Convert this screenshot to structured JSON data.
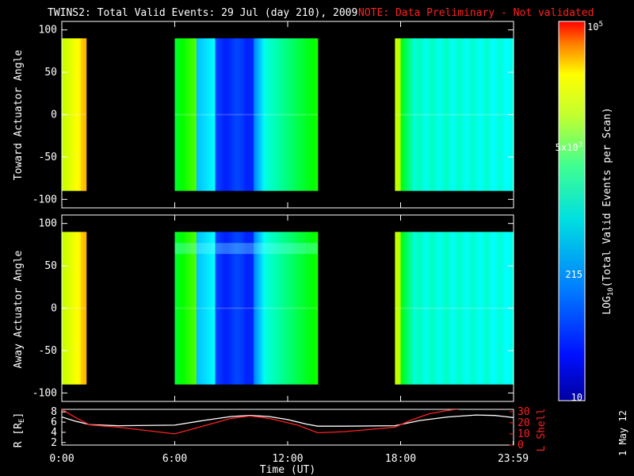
{
  "header": {
    "title": "TWINS2: Total Valid Events: 29 Jul (day 210), 2009",
    "note": "NOTE: Data Preliminary - Not validated",
    "stamp": "1 May 12"
  },
  "colors": {
    "note": "#ff2020",
    "lshell_line": "#ff2020",
    "r_line": "#ffffff",
    "background": "#000000"
  },
  "chart_data": [
    {
      "type": "heatmap",
      "panel": "toward",
      "ylabel": "Toward Actuator Angle",
      "xlim": [
        0,
        24
      ],
      "ylim": [
        -110,
        110
      ],
      "yticks": [
        "100",
        "50",
        "0",
        "-50",
        "-100"
      ],
      "angle_range": [
        -90,
        90
      ],
      "segments": [
        {
          "start": 0.0,
          "end": 1.3,
          "profile": "yellow"
        },
        {
          "start": 6.0,
          "end": 13.6,
          "profile": "midday"
        },
        {
          "start": 17.7,
          "end": 23.98,
          "profile": "evening"
        }
      ]
    },
    {
      "type": "heatmap",
      "panel": "away",
      "ylabel": "Away Actuator Angle",
      "xlim": [
        0,
        24
      ],
      "ylim": [
        -110,
        110
      ],
      "yticks": [
        "100",
        "50",
        "0",
        "-50",
        "-100"
      ],
      "angle_range": [
        -90,
        90
      ],
      "segments": [
        {
          "start": 0.0,
          "end": 1.3,
          "profile": "yellow"
        },
        {
          "start": 6.0,
          "end": 13.6,
          "profile": "midday"
        },
        {
          "start": 17.7,
          "end": 23.98,
          "profile": "evening"
        }
      ]
    },
    {
      "type": "line",
      "panel": "orbit",
      "xlabel": "Time (UT)",
      "xticks": [
        "0:00",
        "6:00",
        "12:00",
        "18:00",
        "23:59"
      ],
      "xtick_values": [
        0,
        6,
        12,
        18,
        23.98
      ],
      "ylabel_left": "R [R",
      "ylabel_left_sub": "E",
      "ylabel_left_end": "]",
      "ylabel_right": "L Shell",
      "yticks_left": [
        "8",
        "6",
        "4",
        "2"
      ],
      "yticks_left_values": [
        8,
        6,
        4,
        2
      ],
      "ylim_left": [
        1.5,
        8.5
      ],
      "yticks_right": [
        "30",
        "20",
        "10",
        "0"
      ],
      "yticks_right_values": [
        30,
        20,
        10,
        0
      ],
      "ylim_right": [
        0,
        32
      ],
      "series": [
        {
          "axis": "left",
          "x": [
            0,
            0.7,
            1.5,
            3,
            6,
            7.5,
            9,
            10,
            11,
            12,
            13,
            13.6,
            15,
            17.7,
            19,
            20.5,
            22,
            23,
            23.98
          ],
          "y": [
            7,
            6.2,
            5.5,
            5.3,
            5.4,
            6.3,
            7.1,
            7.3,
            7.1,
            6.5,
            5.6,
            5.2,
            5.2,
            5.3,
            6.3,
            7.0,
            7.4,
            7.3,
            6.9
          ]
        },
        {
          "axis": "right",
          "x": [
            0,
            0.8,
            1.5,
            3,
            6,
            7.5,
            9,
            10,
            11,
            12.5,
            13.6,
            15,
            17.7,
            18.5,
            19.5,
            20.5,
            21.4
          ],
          "y": [
            32,
            24,
            18,
            16,
            10,
            17,
            24,
            26,
            24,
            18,
            11,
            12,
            16,
            22,
            28,
            31,
            33
          ]
        }
      ]
    }
  ],
  "colorbar": {
    "label": "LOG",
    "label_sub": "10",
    "label_end": "(Total Valid Events per Scan)",
    "tick_top": "10",
    "tick_top_sup": "5",
    "tick_mid": "5x10",
    "tick_mid_sup": "3",
    "tick_low": "215",
    "tick_bottom": "10",
    "tick_values": [
      100000,
      5000,
      215,
      10
    ],
    "range": [
      10,
      100000
    ]
  }
}
